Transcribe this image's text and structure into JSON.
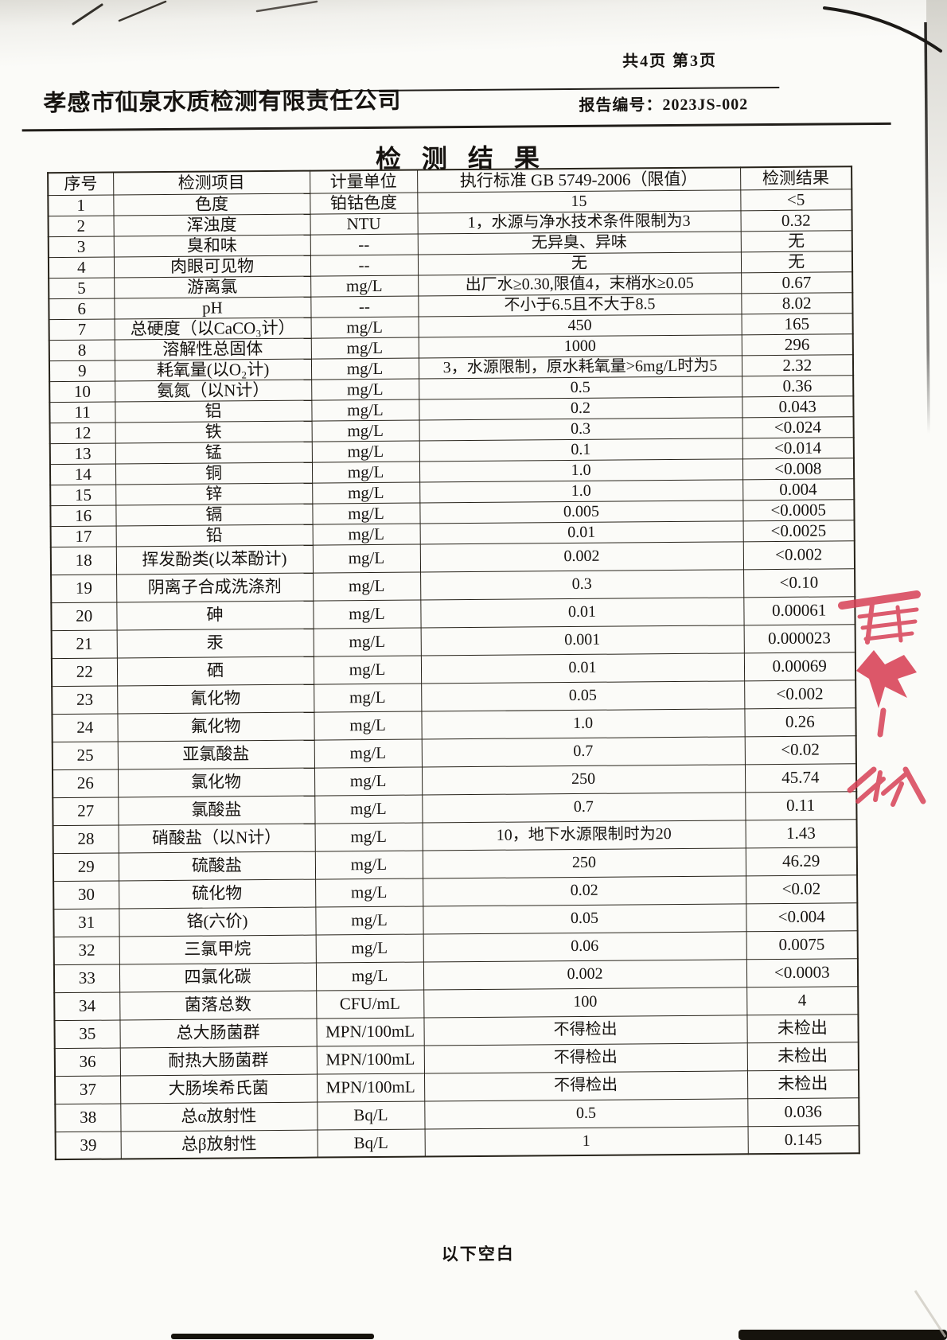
{
  "page": {
    "page_indicator": "共4页 第3页",
    "company_name": "孝感市仙泉水质检测有限责任公司",
    "report_no_label": "报告编号：",
    "report_no": "2023JS-002",
    "title": "检测结果",
    "footer_note": "以下空白"
  },
  "seal": {
    "name": "red-seal-fragment",
    "color": "#d63a50"
  },
  "colors": {
    "ink": "#161310",
    "table_border": "#262219",
    "paper": "#fbfbf8",
    "seal_red": "#d63a50"
  },
  "table": {
    "headers": [
      "序号",
      "检测项目",
      "计量单位",
      "执行标准 GB 5749-2006（限值）",
      "检测结果"
    ],
    "rows": [
      {
        "no": "1",
        "item": "色度",
        "unit": "铂钴色度",
        "standard": "15",
        "result": "<5"
      },
      {
        "no": "2",
        "item": "浑浊度",
        "unit": "NTU",
        "standard": "1，水源与净水技术条件限制为3",
        "result": "0.32"
      },
      {
        "no": "3",
        "item": "臭和味",
        "unit": "--",
        "standard": "无异臭、异味",
        "result": "无"
      },
      {
        "no": "4",
        "item": "肉眼可见物",
        "unit": "--",
        "standard": "无",
        "result": "无"
      },
      {
        "no": "5",
        "item": "游离氯",
        "unit": "mg/L",
        "standard": "出厂水≥0.30,限值4，末梢水≥0.05",
        "result": "0.67"
      },
      {
        "no": "6",
        "item": "pH",
        "unit": "--",
        "standard": "不小于6.5且不大于8.5",
        "result": "8.02"
      },
      {
        "no": "7",
        "item": "总硬度（以CaCO₃计）",
        "unit": "mg/L",
        "standard": "450",
        "result": "165"
      },
      {
        "no": "8",
        "item": "溶解性总固体",
        "unit": "mg/L",
        "standard": "1000",
        "result": "296"
      },
      {
        "no": "9",
        "item": "耗氧量(以O₂计)",
        "unit": "mg/L",
        "standard": "3，水源限制，原水耗氧量>6mg/L时为5",
        "result": "2.32"
      },
      {
        "no": "10",
        "item": "氨氮（以N计）",
        "unit": "mg/L",
        "standard": "0.5",
        "result": "0.36"
      },
      {
        "no": "11",
        "item": "铝",
        "unit": "mg/L",
        "standard": "0.2",
        "result": "0.043"
      },
      {
        "no": "12",
        "item": "铁",
        "unit": "mg/L",
        "standard": "0.3",
        "result": "<0.024"
      },
      {
        "no": "13",
        "item": "锰",
        "unit": "mg/L",
        "standard": "0.1",
        "result": "<0.014"
      },
      {
        "no": "14",
        "item": "铜",
        "unit": "mg/L",
        "standard": "1.0",
        "result": "<0.008"
      },
      {
        "no": "15",
        "item": "锌",
        "unit": "mg/L",
        "standard": "1.0",
        "result": "0.004"
      },
      {
        "no": "16",
        "item": "镉",
        "unit": "mg/L",
        "standard": "0.005",
        "result": "<0.0005"
      },
      {
        "no": "17",
        "item": "铅",
        "unit": "mg/L",
        "standard": "0.01",
        "result": "<0.0025"
      },
      {
        "no": "18",
        "item": "挥发酚类(以苯酚计)",
        "unit": "mg/L",
        "standard": "0.002",
        "result": "<0.002"
      },
      {
        "no": "19",
        "item": "阴离子合成洗涤剂",
        "unit": "mg/L",
        "standard": "0.3",
        "result": "<0.10"
      },
      {
        "no": "20",
        "item": "砷",
        "unit": "mg/L",
        "standard": "0.01",
        "result": "0.00061"
      },
      {
        "no": "21",
        "item": "汞",
        "unit": "mg/L",
        "standard": "0.001",
        "result": "0.000023"
      },
      {
        "no": "22",
        "item": "硒",
        "unit": "mg/L",
        "standard": "0.01",
        "result": "0.00069"
      },
      {
        "no": "23",
        "item": "氰化物",
        "unit": "mg/L",
        "standard": "0.05",
        "result": "<0.002"
      },
      {
        "no": "24",
        "item": "氟化物",
        "unit": "mg/L",
        "standard": "1.0",
        "result": "0.26"
      },
      {
        "no": "25",
        "item": "亚氯酸盐",
        "unit": "mg/L",
        "standard": "0.7",
        "result": "<0.02"
      },
      {
        "no": "26",
        "item": "氯化物",
        "unit": "mg/L",
        "standard": "250",
        "result": "45.74"
      },
      {
        "no": "27",
        "item": "氯酸盐",
        "unit": "mg/L",
        "standard": "0.7",
        "result": "0.11"
      },
      {
        "no": "28",
        "item": "硝酸盐（以N计）",
        "unit": "mg/L",
        "standard": "10，地下水源限制时为20",
        "result": "1.43"
      },
      {
        "no": "29",
        "item": "硫酸盐",
        "unit": "mg/L",
        "standard": "250",
        "result": "46.29"
      },
      {
        "no": "30",
        "item": "硫化物",
        "unit": "mg/L",
        "standard": "0.02",
        "result": "<0.02"
      },
      {
        "no": "31",
        "item": "铬(六价)",
        "unit": "mg/L",
        "standard": "0.05",
        "result": "<0.004"
      },
      {
        "no": "32",
        "item": "三氯甲烷",
        "unit": "mg/L",
        "standard": "0.06",
        "result": "0.0075"
      },
      {
        "no": "33",
        "item": "四氯化碳",
        "unit": "mg/L",
        "standard": "0.002",
        "result": "<0.0003"
      },
      {
        "no": "34",
        "item": "菌落总数",
        "unit": "CFU/mL",
        "standard": "100",
        "result": "4"
      },
      {
        "no": "35",
        "item": "总大肠菌群",
        "unit": "MPN/100mL",
        "standard": "不得检出",
        "result": "未检出"
      },
      {
        "no": "36",
        "item": "耐热大肠菌群",
        "unit": "MPN/100mL",
        "standard": "不得检出",
        "result": "未检出"
      },
      {
        "no": "37",
        "item": "大肠埃希氏菌",
        "unit": "MPN/100mL",
        "standard": "不得检出",
        "result": "未检出"
      },
      {
        "no": "38",
        "item": "总α放射性",
        "unit": "Bq/L",
        "standard": "0.5",
        "result": "0.036"
      },
      {
        "no": "39",
        "item": "总β放射性",
        "unit": "Bq/L",
        "standard": "1",
        "result": "0.145"
      }
    ]
  }
}
